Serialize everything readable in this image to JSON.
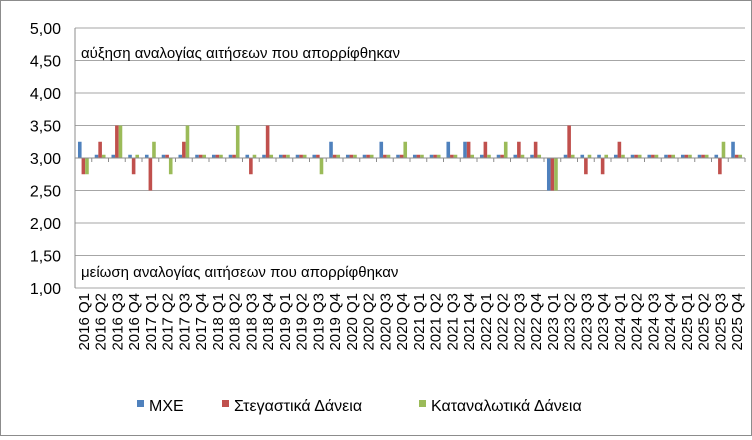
{
  "chart_data": {
    "type": "bar",
    "title": "",
    "xlabel": "",
    "ylabel": "",
    "ylim": [
      1.0,
      5.0
    ],
    "ytick_step": 0.5,
    "baseline": 3.0,
    "grid": "horizontal",
    "legend_position": "bottom",
    "annotations": {
      "upper": "αύξηση αναλογίας αιτήσεων που απορρίφθηκαν",
      "lower": "μείωση αναλογίας αιτήσεων που απορρίφθηκαν"
    },
    "y_ticks": [
      "1,00",
      "1,50",
      "2,00",
      "2,50",
      "3,00",
      "3,50",
      "4,00",
      "4,50",
      "5,00"
    ],
    "categories": [
      "2016 Q1",
      "2016 Q2",
      "2016 Q3",
      "2016 Q4",
      "2017 Q1",
      "2017 Q2",
      "2017 Q3",
      "2017 Q4",
      "2018 Q1",
      "2018 Q2",
      "2018 Q3",
      "2018 Q4",
      "2019 Q1",
      "2019 Q2",
      "2019 Q3",
      "2019 Q4",
      "2020 Q1",
      "2020 Q2",
      "2020 Q3",
      "2020 Q4",
      "2021 Q1",
      "2021 Q2",
      "2021 Q3",
      "2021 Q4",
      "2022 Q1",
      "2022 Q2",
      "2022 Q3",
      "2022 Q4",
      "2023 Q1",
      "2023 Q2",
      "2023 Q3",
      "2023 Q4",
      "2024 Q1",
      "2024 Q2",
      "2024 Q3",
      "2024 Q4",
      "2025 Q1",
      "2025 Q2",
      "2025 Q3",
      "2025 Q4"
    ],
    "series": [
      {
        "name": "ΜΧΕ",
        "color": "#4f81bd",
        "values": [
          3.25,
          3.05,
          3.05,
          3.05,
          3.05,
          3.05,
          3.05,
          3.05,
          3.05,
          3.05,
          3.05,
          3.05,
          3.05,
          3.05,
          3.05,
          3.25,
          3.05,
          3.05,
          3.25,
          3.05,
          3.05,
          3.05,
          3.25,
          3.25,
          3.05,
          3.05,
          3.05,
          3.05,
          2.5,
          3.05,
          3.05,
          3.05,
          3.05,
          3.05,
          3.05,
          3.05,
          3.05,
          3.05,
          3.05,
          3.25
        ]
      },
      {
        "name": "Στεγαστικά Δάνεια",
        "color": "#c0504d",
        "values": [
          2.75,
          3.25,
          3.5,
          2.75,
          2.5,
          3.05,
          3.25,
          3.05,
          3.05,
          3.05,
          2.75,
          3.5,
          3.05,
          3.05,
          3.05,
          3.05,
          3.05,
          3.05,
          3.05,
          3.05,
          3.05,
          3.05,
          3.05,
          3.25,
          3.25,
          3.05,
          3.25,
          3.25,
          2.5,
          3.5,
          2.75,
          2.75,
          3.25,
          3.05,
          3.05,
          3.05,
          3.05,
          3.05,
          2.75,
          3.05
        ]
      },
      {
        "name": "Καταναλωτικά Δάνεια",
        "color": "#9bbb59",
        "values": [
          2.75,
          3.05,
          3.5,
          3.05,
          3.25,
          2.75,
          3.5,
          3.05,
          3.05,
          3.5,
          3.05,
          3.05,
          3.05,
          3.05,
          2.75,
          3.05,
          3.05,
          3.05,
          3.05,
          3.25,
          3.05,
          3.05,
          3.05,
          3.05,
          3.05,
          3.25,
          3.05,
          3.05,
          2.5,
          3.05,
          3.05,
          3.05,
          3.05,
          3.05,
          3.05,
          3.05,
          3.05,
          3.05,
          3.25,
          3.05
        ]
      }
    ]
  }
}
